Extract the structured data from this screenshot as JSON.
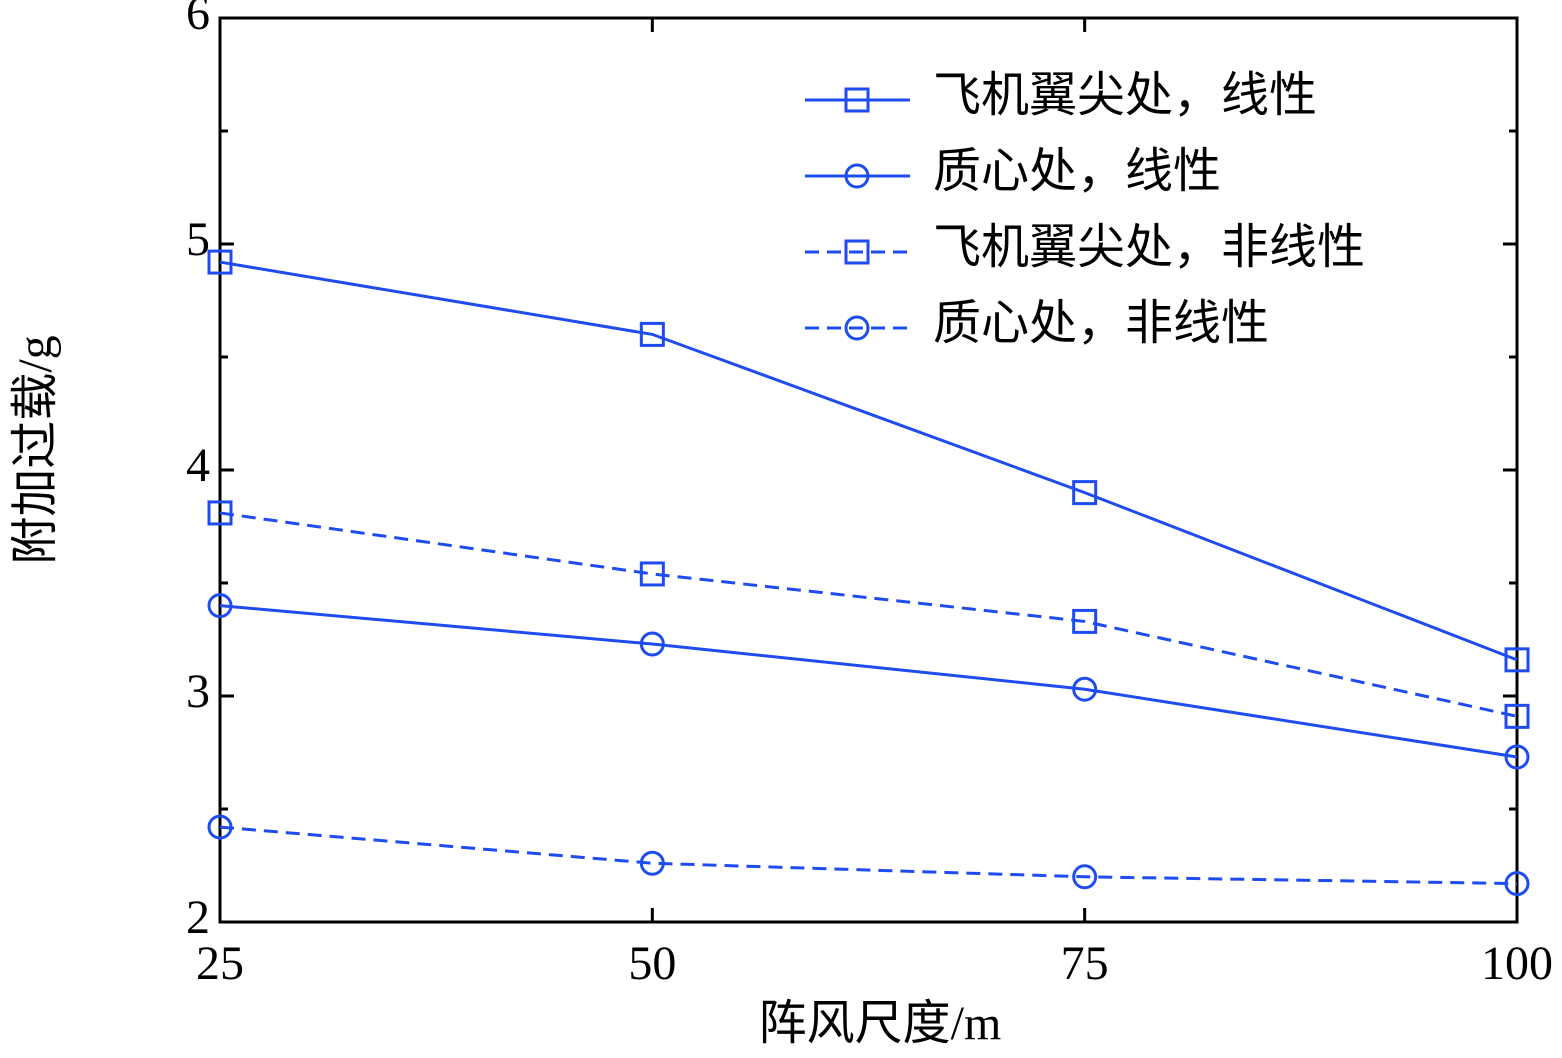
{
  "chart_data": {
    "type": "line",
    "x_label": "阵风尺度/m",
    "y_label": "附加过载/g",
    "x": [
      25,
      50,
      75,
      100
    ],
    "xlim": [
      25,
      100
    ],
    "xticks": [
      25,
      50,
      75,
      100
    ],
    "ylim": [
      2,
      6
    ],
    "yticks": [
      2,
      3,
      4,
      5,
      6
    ],
    "yminorticks": [
      2.5,
      3.5,
      4.5,
      5.5
    ],
    "grid": false,
    "legend": "upper right",
    "series": [
      {
        "name": "飞机翼尖处，线性",
        "color": "#1f4cf0",
        "linestyle": "solid",
        "marker": "square",
        "values": [
          4.92,
          4.6,
          3.9,
          3.16
        ]
      },
      {
        "name": "质心处，线性",
        "color": "#1f4cf0",
        "linestyle": "solid",
        "marker": "circle",
        "values": [
          3.4,
          3.23,
          3.03,
          2.73
        ]
      },
      {
        "name": "飞机翼尖处，非线性",
        "color": "#1f4cf0",
        "linestyle": "dashed",
        "marker": "square",
        "values": [
          3.81,
          3.54,
          3.33,
          2.91
        ]
      },
      {
        "name": "质心处，非线性",
        "color": "#1f4cf0",
        "linestyle": "dashed",
        "marker": "circle",
        "values": [
          2.42,
          2.26,
          2.2,
          2.17
        ]
      }
    ]
  }
}
